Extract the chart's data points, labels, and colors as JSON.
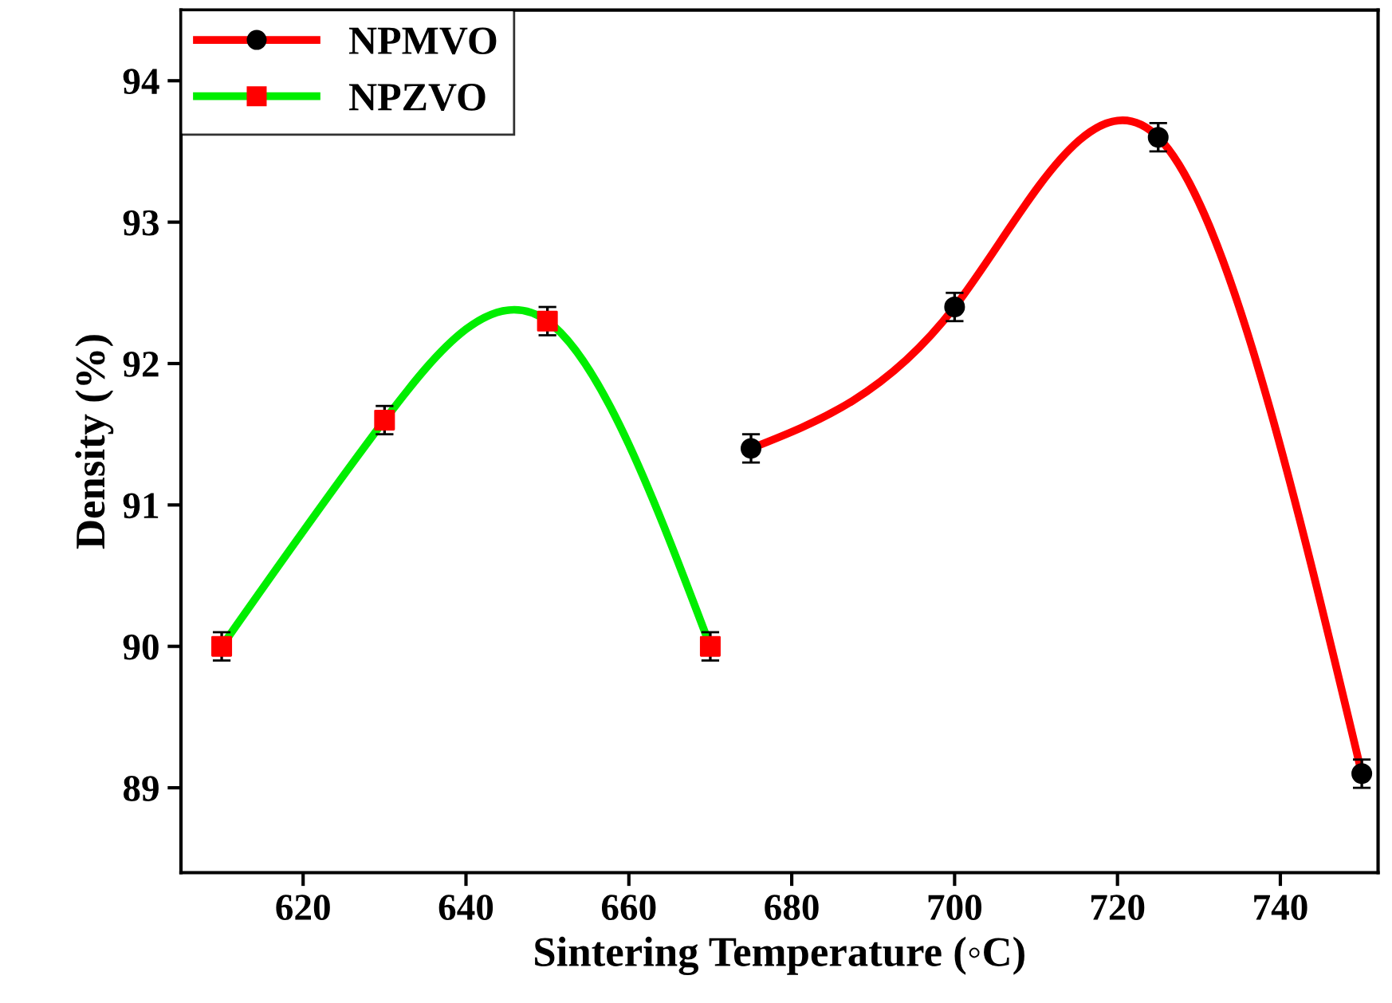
{
  "chart_data": {
    "type": "line",
    "xlabel": "Sintering Temperature (◦C)",
    "ylabel": "Density (%)",
    "xlim": [
      605,
      752
    ],
    "ylim": [
      88.4,
      94.5
    ],
    "xticks": [
      620,
      640,
      660,
      680,
      700,
      720,
      740
    ],
    "yticks": [
      89,
      90,
      91,
      92,
      93,
      94
    ],
    "grid": false,
    "legend": "top left",
    "line_style": "solid",
    "series": [
      {
        "name": "NPMVO",
        "color": "#ff0000",
        "colors": [
          "#000000",
          "#000000",
          "#000000",
          "#000000"
        ],
        "marker": "circle",
        "x": [
          675,
          700,
          725,
          750
        ],
        "values": [
          91.4,
          92.4,
          93.6,
          89.1
        ],
        "errors": [
          0.1,
          0.1,
          0.1,
          0.1
        ]
      },
      {
        "name": "NPZVO",
        "color": "#00ee00",
        "colors": [
          "#ff0000",
          "#ff0000",
          "#ff0000",
          "#ff0000"
        ],
        "marker": "square",
        "x": [
          610,
          630,
          650,
          670
        ],
        "values": [
          90.0,
          91.6,
          92.3,
          90.0
        ],
        "errors": [
          0.1,
          0.1,
          0.1,
          0.1
        ]
      }
    ]
  }
}
